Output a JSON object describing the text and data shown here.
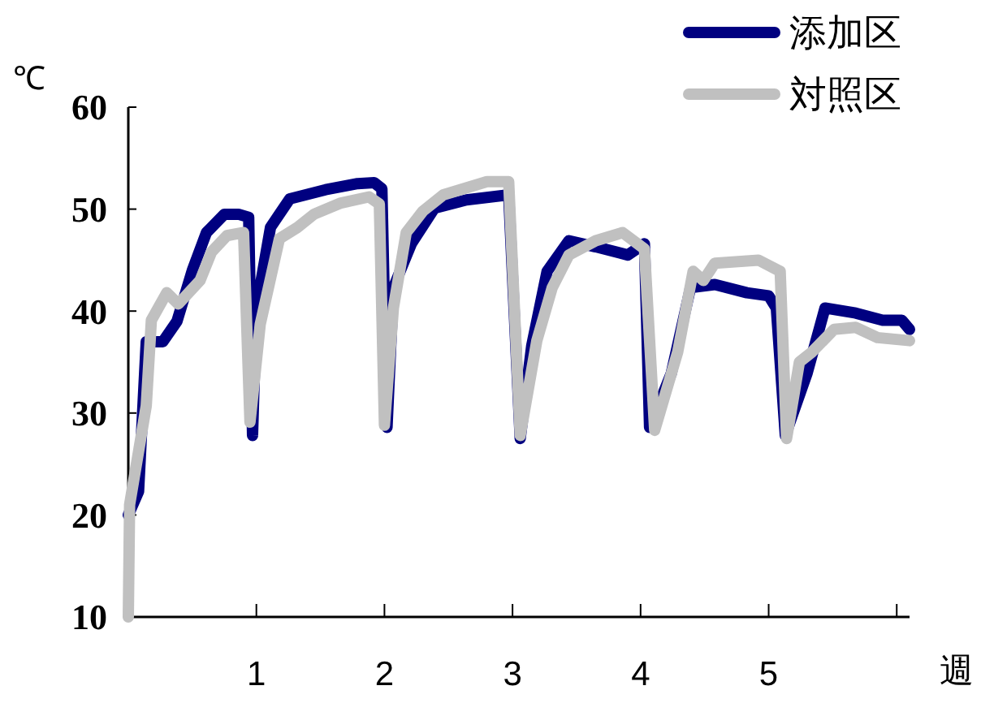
{
  "chart_data": {
    "type": "line",
    "xlabel": "週",
    "ylabel": "℃",
    "xlim": [
      0,
      6.1
    ],
    "ylim": [
      10,
      60
    ],
    "xticks": [
      1,
      2,
      3,
      4,
      5,
      {
        "value": 6,
        "label": null
      }
    ],
    "yticks": [
      10,
      20,
      30,
      40,
      50,
      60
    ],
    "grid": false,
    "legend": "top right",
    "marker": "none",
    "line_style": "solid",
    "series": [
      {
        "name": "添加区",
        "color": "#000080",
        "x": [
          0,
          0.08,
          0.14,
          0.27,
          0.38,
          0.5,
          0.61,
          0.75,
          0.86,
          0.94,
          0.97,
          1.0,
          1.11,
          1.26,
          1.54,
          1.79,
          1.92,
          1.98,
          2.02,
          2.07,
          2.21,
          2.39,
          2.64,
          2.97,
          3.06,
          3.15,
          3.27,
          3.44,
          3.65,
          3.9,
          4.03,
          4.07,
          4.24,
          4.39,
          4.58,
          4.83,
          5.0,
          5.06,
          5.13,
          5.3,
          5.44,
          5.68,
          5.89,
          6.04,
          6.1
        ],
        "values": [
          20,
          22.3,
          37,
          37,
          39,
          44,
          47.7,
          49.5,
          49.5,
          49.2,
          27.8,
          40.3,
          48.2,
          51,
          51.9,
          52.5,
          52.6,
          52,
          28.6,
          42.3,
          46.6,
          50.1,
          50.9,
          51.4,
          27.5,
          36.6,
          43.9,
          46.9,
          46.3,
          45.5,
          46.6,
          28.6,
          33.9,
          42.3,
          42.6,
          41.8,
          41.5,
          40.3,
          27.8,
          33.9,
          40.3,
          39.8,
          39.1,
          39.1,
          38.2
        ]
      },
      {
        "name": "対照区",
        "color": "#c0c0c0",
        "x": [
          0,
          0.01,
          0.14,
          0.18,
          0.3,
          0.39,
          0.56,
          0.65,
          0.77,
          0.9,
          0.95,
          1.03,
          1.18,
          1.32,
          1.45,
          1.66,
          1.88,
          1.96,
          2.0,
          2.07,
          2.17,
          2.3,
          2.46,
          2.8,
          2.97,
          3.06,
          3.19,
          3.31,
          3.44,
          3.65,
          3.86,
          4.03,
          4.11,
          4.29,
          4.41,
          4.49,
          4.58,
          4.92,
          5.09,
          5.14,
          5.24,
          5.34,
          5.51,
          5.68,
          5.85,
          6.1
        ],
        "values": [
          10,
          21,
          30.7,
          39.1,
          41.8,
          40.7,
          43,
          45.8,
          47.4,
          47.7,
          29.1,
          38.7,
          47.1,
          48.2,
          49.5,
          50.6,
          51.2,
          50.5,
          28.8,
          40.3,
          47.7,
          49.8,
          51.4,
          52.7,
          52.7,
          27.8,
          37.1,
          42.3,
          45.5,
          46.9,
          47.7,
          46.1,
          28.3,
          36,
          43.9,
          43,
          44.7,
          45,
          43.9,
          27.5,
          35,
          36,
          38.2,
          38.4,
          37.4,
          37.1
        ]
      }
    ]
  }
}
